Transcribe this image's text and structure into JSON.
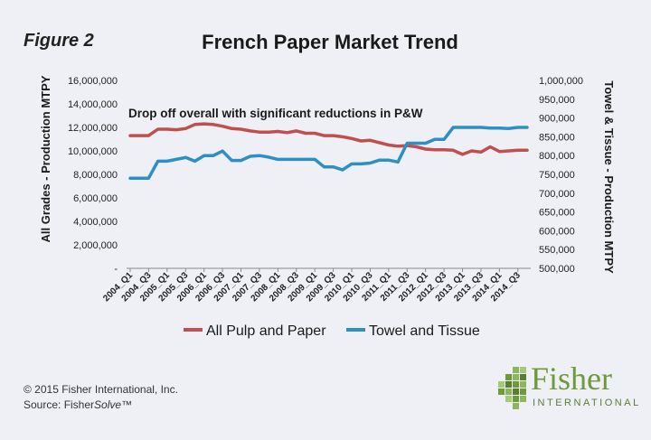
{
  "figure_label": "Figure 2",
  "footer": {
    "copyright": "© 2015 Fisher International, Inc.",
    "source_prefix": "Source: Fisher",
    "source_italic": "Solve",
    "source_suffix": "™"
  },
  "logo": {
    "wordmark": "Fisher",
    "subtitle": "INTERNATIONAL",
    "color": "#6e9a3a"
  },
  "chart_data": {
    "type": "line",
    "title": "French Paper Market Trend",
    "annotation": "Drop off  overall with significant reductions in P&W",
    "ylabel_left": "All Grades - Production MTPY",
    "ylabel_right": "Towel & Tissue - Production MTPY",
    "ylim_left": [
      0,
      16000000
    ],
    "ylim_right": [
      500000,
      1000000
    ],
    "yticks_left": [
      "-",
      "2,000,000",
      "4,000,000",
      "6,000,000",
      "8,000,000",
      "10,000,000",
      "12,000,000",
      "14,000,000",
      "16,000,000"
    ],
    "yticks_right": [
      "500,000",
      "550,000",
      "600,000",
      "650,000",
      "700,000",
      "750,000",
      "800,000",
      "850,000",
      "900,000",
      "950,000",
      "1,000,000"
    ],
    "xtick_labels": [
      "2004_Q1",
      "2004_Q3",
      "2005_Q1",
      "2005_Q3",
      "2006_Q1",
      "2006_Q3",
      "2007_Q1",
      "2007_Q3",
      "2008_Q1",
      "2008_Q3",
      "2009_Q1",
      "2009_Q3",
      "2010_Q1",
      "2010_Q3",
      "2011_Q1",
      "2011_Q3",
      "2012_Q1",
      "2012_Q3",
      "2013_Q1",
      "2013_Q3",
      "2014_Q1",
      "2014_Q3"
    ],
    "x": [
      "2004_Q1",
      "2004_Q2",
      "2004_Q3",
      "2004_Q4",
      "2005_Q1",
      "2005_Q2",
      "2005_Q3",
      "2005_Q4",
      "2006_Q1",
      "2006_Q2",
      "2006_Q3",
      "2006_Q4",
      "2007_Q1",
      "2007_Q2",
      "2007_Q3",
      "2007_Q4",
      "2008_Q1",
      "2008_Q2",
      "2008_Q3",
      "2008_Q4",
      "2009_Q1",
      "2009_Q2",
      "2009_Q3",
      "2009_Q4",
      "2010_Q1",
      "2010_Q2",
      "2010_Q3",
      "2010_Q4",
      "2011_Q1",
      "2011_Q2",
      "2011_Q3",
      "2011_Q4",
      "2012_Q1",
      "2012_Q2",
      "2012_Q3",
      "2012_Q4",
      "2013_Q1",
      "2013_Q2",
      "2013_Q3",
      "2013_Q4",
      "2014_Q1",
      "2014_Q2",
      "2014_Q3",
      "2014_Q4"
    ],
    "series": [
      {
        "name": "All Pulp and Paper",
        "axis": "left",
        "color": "#c0504d",
        "values": [
          11300000,
          11300000,
          11300000,
          11850000,
          11850000,
          11800000,
          11900000,
          12250000,
          12300000,
          12250000,
          12100000,
          11900000,
          11850000,
          11700000,
          11600000,
          11600000,
          11650000,
          11550000,
          11700000,
          11500000,
          11500000,
          11300000,
          11300000,
          11200000,
          11050000,
          10850000,
          10900000,
          10700000,
          10500000,
          10400000,
          10450000,
          10350000,
          10150000,
          10100000,
          10100000,
          10050000,
          9700000,
          10000000,
          9900000,
          10350000,
          9950000,
          10000000,
          10050000,
          10050000
        ]
      },
      {
        "name": "Towel and Tissue",
        "axis": "right",
        "color": "#2e8fc4",
        "values": [
          740000,
          740000,
          740000,
          785000,
          785000,
          790000,
          795000,
          785000,
          800000,
          800000,
          812000,
          787000,
          787000,
          798000,
          800000,
          796000,
          790000,
          790000,
          790000,
          790000,
          790000,
          770000,
          770000,
          762000,
          778000,
          778000,
          780000,
          788000,
          788000,
          783000,
          833000,
          833000,
          833000,
          843000,
          843000,
          875000,
          875000,
          875000,
          875000,
          873000,
          873000,
          872000,
          875000,
          875000
        ]
      }
    ],
    "legend_position": "bottom",
    "grid": false
  }
}
